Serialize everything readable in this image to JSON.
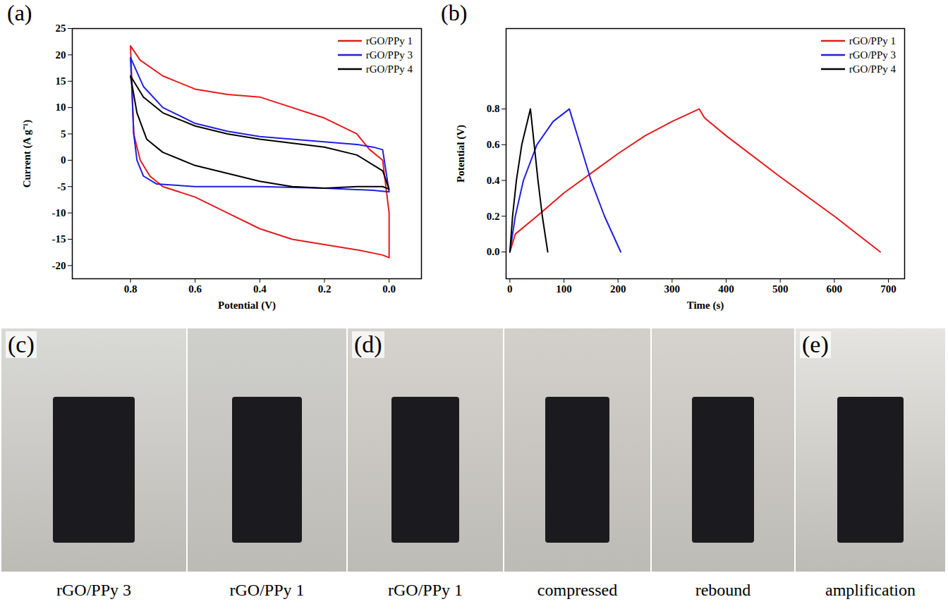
{
  "chart_data": [
    {
      "type": "line",
      "title": "(a)",
      "x_label": "Potential (V)",
      "y_label": "Current (A g⁻¹)",
      "xlim": [
        0.98,
        -0.1
      ],
      "xticks": [
        0.8,
        0.6,
        0.4,
        0.2,
        {
          "value": 0,
          "label": "0.0"
        }
      ],
      "ylim": [
        -22.5,
        25
      ],
      "yticks": [
        -20,
        -15,
        -10,
        -5,
        0,
        5,
        10,
        15,
        20,
        25
      ],
      "grid": false,
      "legend": "upper right",
      "series": [
        {
          "name": "rGO/PPy 1",
          "color": "#e41a1c",
          "x": [
            0.0,
            0.0,
            0.02,
            0.06,
            0.1,
            0.2,
            0.35,
            0.4,
            0.5,
            0.6,
            0.7,
            0.77,
            0.8,
            0.79,
            0.77,
            0.74,
            0.7,
            0.6,
            0.5,
            0.4,
            0.3,
            0.2,
            0.1,
            0.02,
            0.0
          ],
          "values": [
            -18.5,
            -10,
            0,
            2,
            5,
            8,
            11,
            12,
            12.5,
            13.5,
            16,
            19,
            21.7,
            5,
            0,
            -3,
            -5,
            -7,
            -10,
            -13,
            -15,
            -16,
            -17,
            -18,
            -18.5
          ]
        },
        {
          "name": "rGO/PPy 3",
          "color": "#1f1fe0",
          "x": [
            0.0,
            0.02,
            0.05,
            0.1,
            0.2,
            0.4,
            0.5,
            0.6,
            0.7,
            0.76,
            0.8,
            0.79,
            0.78,
            0.76,
            0.72,
            0.6,
            0.4,
            0.2,
            0.05,
            0.0
          ],
          "values": [
            -6,
            2,
            2.5,
            3,
            3.5,
            4.5,
            5.5,
            7,
            10,
            14,
            19.5,
            5,
            0,
            -3,
            -4.5,
            -5,
            -5,
            -5.3,
            -5.7,
            -6
          ]
        },
        {
          "name": "rGO/PPy 4",
          "color": "#000000",
          "x": [
            0.0,
            0.02,
            0.1,
            0.2,
            0.4,
            0.5,
            0.6,
            0.7,
            0.76,
            0.8,
            0.78,
            0.75,
            0.7,
            0.6,
            0.5,
            0.4,
            0.3,
            0.2,
            0.1,
            0.02,
            0.0
          ],
          "values": [
            -5.5,
            -2,
            1,
            2.5,
            4,
            5,
            6.5,
            9,
            12,
            16,
            9,
            4,
            1.5,
            -1,
            -2.5,
            -4,
            -5,
            -5.3,
            -5,
            -5,
            -5.5
          ]
        }
      ]
    },
    {
      "type": "line",
      "title": "(b)",
      "x_label": "Time (s)",
      "y_label": "Potential (V)",
      "xlim": [
        -7,
        730
      ],
      "xticks": [
        0,
        100,
        200,
        300,
        400,
        500,
        600,
        700
      ],
      "ylim": [
        -0.15,
        1.25
      ],
      "yticks": [
        {
          "value": 0,
          "label": "0.0"
        },
        0.2,
        0.4,
        0.6,
        0.8
      ],
      "grid": false,
      "legend": "upper right",
      "series": [
        {
          "name": "rGO/PPy 1",
          "color": "#e41a1c",
          "x": [
            0,
            10,
            50,
            100,
            150,
            200,
            250,
            300,
            350,
            360,
            400,
            500,
            600,
            685
          ],
          "values": [
            0,
            0.1,
            0.2,
            0.33,
            0.44,
            0.55,
            0.65,
            0.73,
            0.8,
            0.75,
            0.65,
            0.42,
            0.2,
            0
          ]
        },
        {
          "name": "rGO/PPy 3",
          "color": "#1f1fe0",
          "x": [
            0,
            10,
            25,
            50,
            80,
            110,
            130,
            150,
            175,
            205
          ],
          "values": [
            0,
            0.2,
            0.4,
            0.6,
            0.73,
            0.8,
            0.6,
            0.4,
            0.2,
            0
          ]
        },
        {
          "name": "rGO/PPy 4",
          "color": "#000000",
          "x": [
            0,
            5,
            12,
            22,
            38,
            45,
            52,
            60,
            70
          ],
          "values": [
            0,
            0.2,
            0.4,
            0.6,
            0.8,
            0.6,
            0.4,
            0.2,
            0
          ]
        }
      ]
    }
  ],
  "photos": {
    "panels": [
      {
        "title": "(c)",
        "photos": [
          {
            "caption": "rGO/PPy 3"
          },
          {
            "caption": "rGO/PPy 1"
          }
        ]
      },
      {
        "title": "(d)",
        "photos": [
          {
            "caption": "rGO/PPy 1"
          },
          {
            "caption": "compressed"
          },
          {
            "caption": "rebound"
          }
        ]
      },
      {
        "title": "(e)",
        "photos": [
          {
            "caption": "amplification"
          }
        ]
      }
    ]
  }
}
